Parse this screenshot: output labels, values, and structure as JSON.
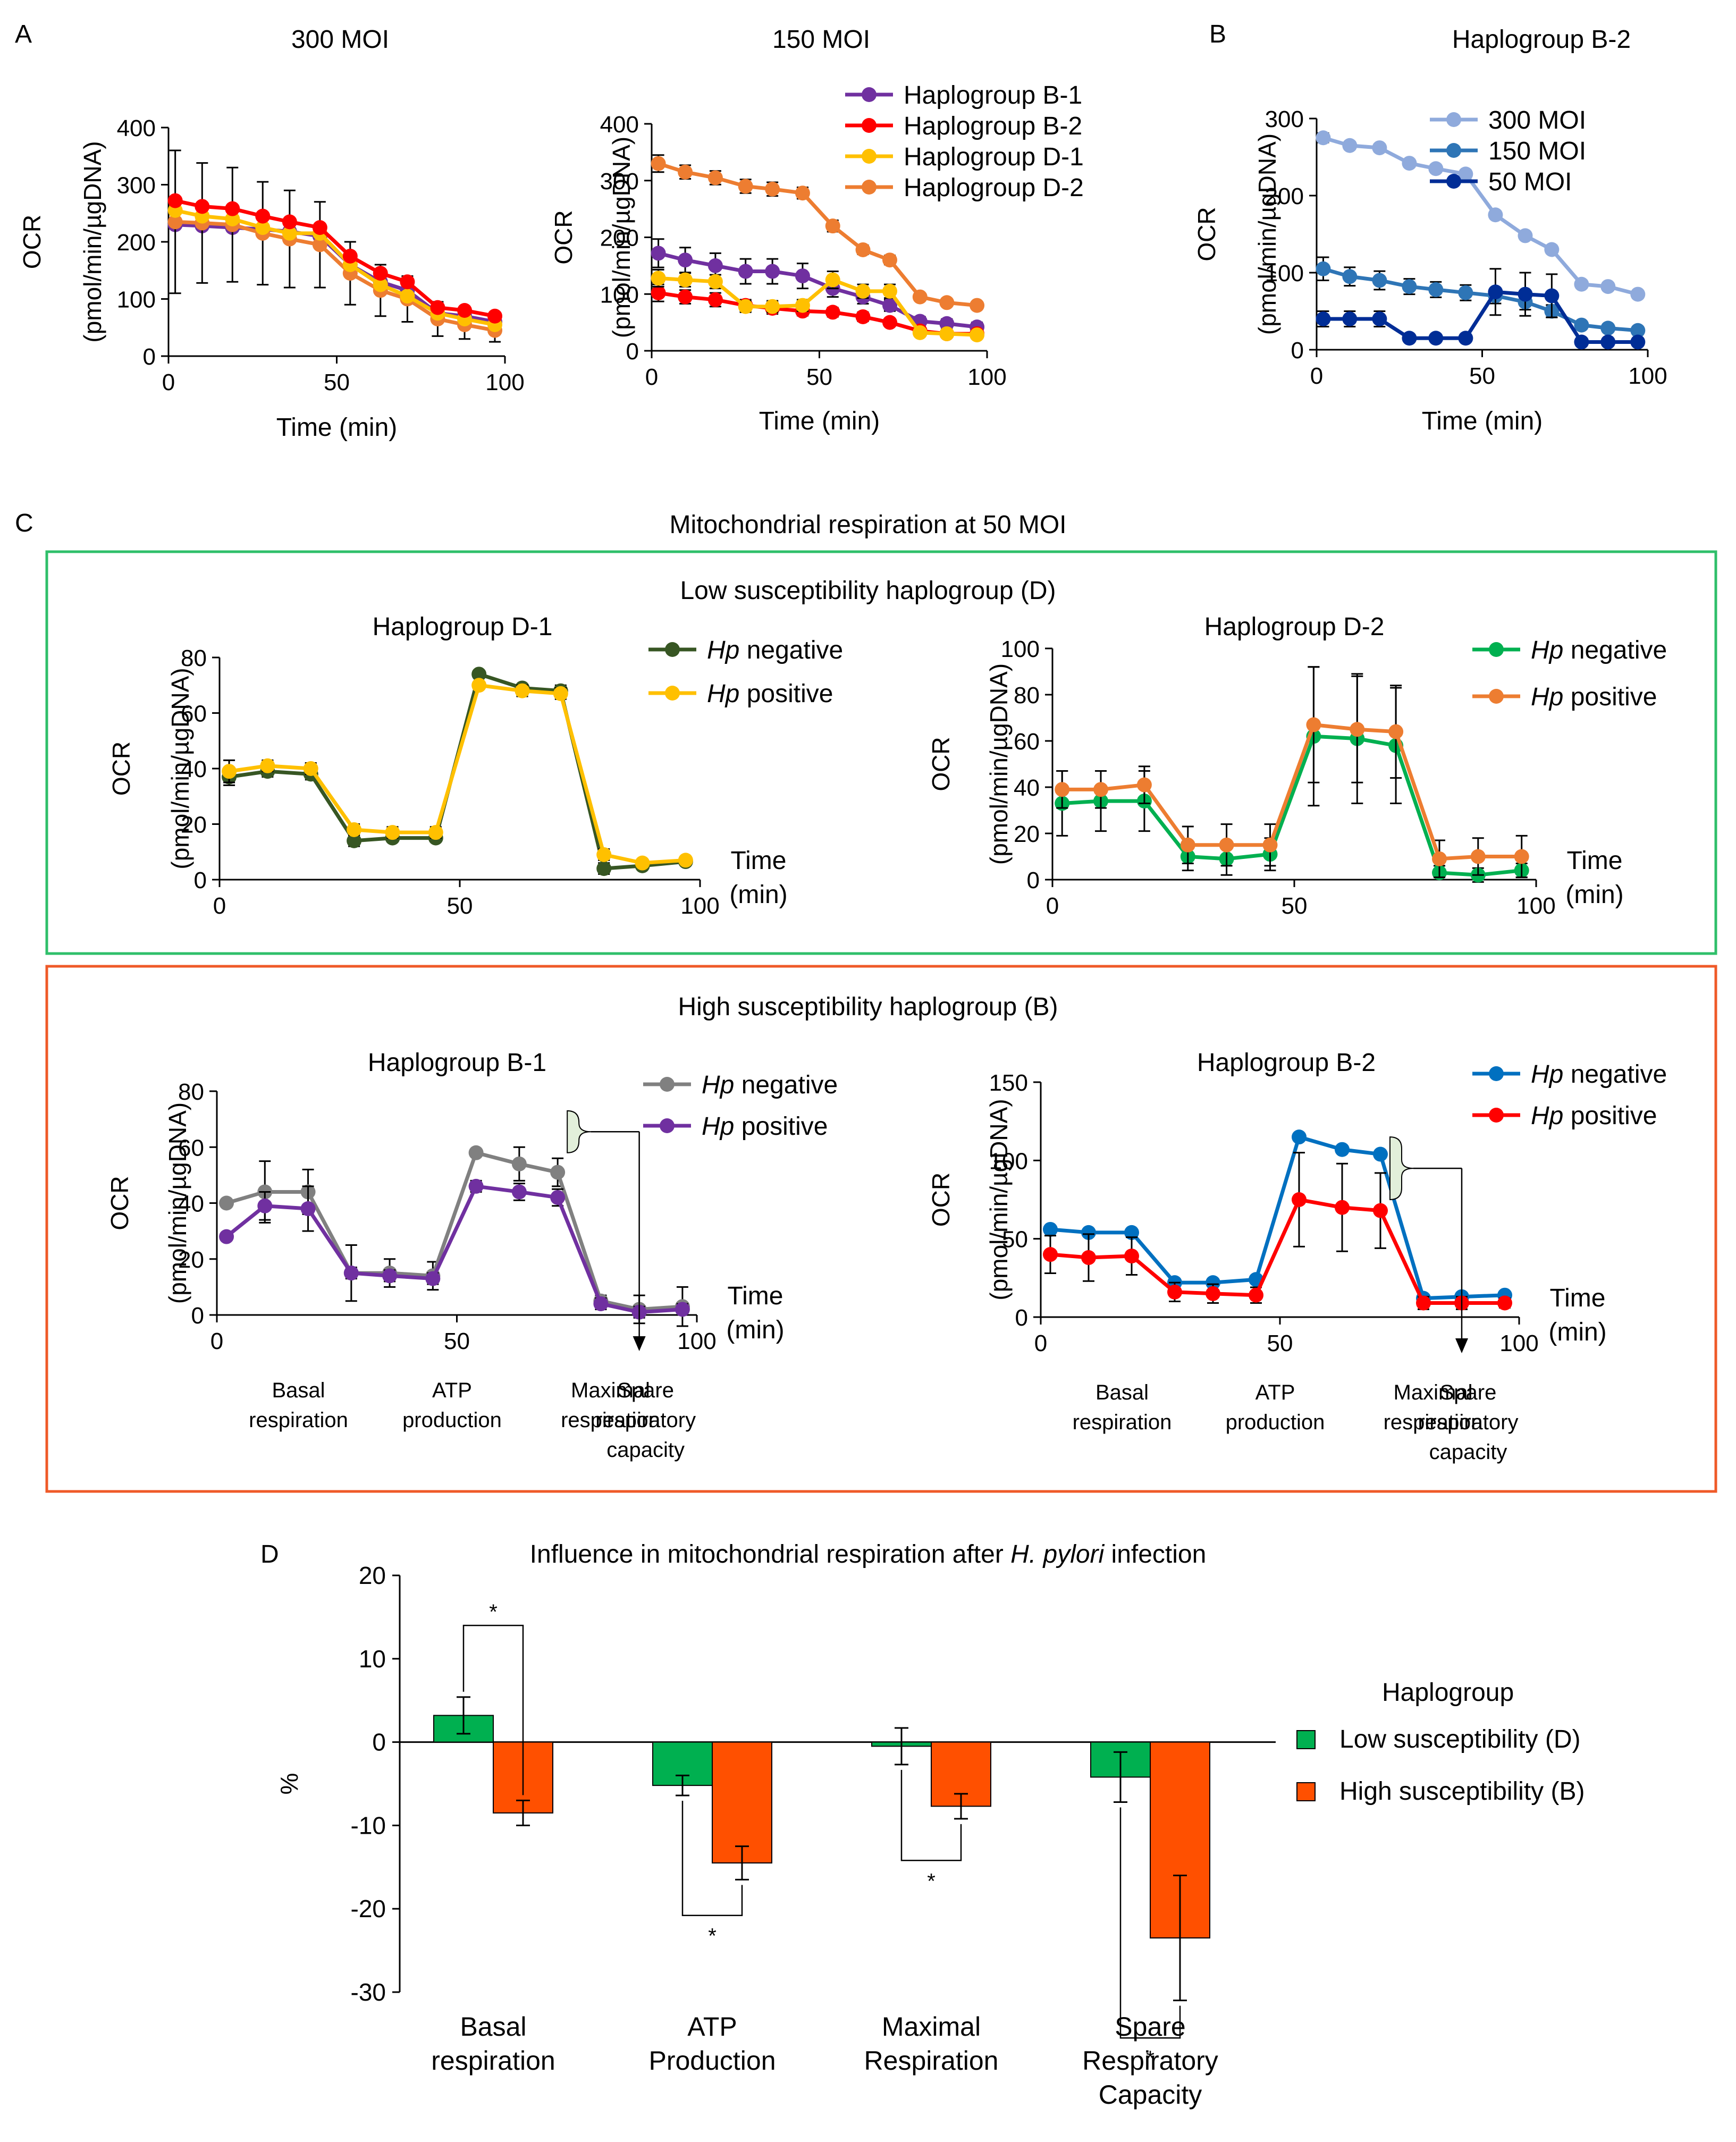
{
  "figure": {
    "panel_labels": {
      "a": "A",
      "b": "B",
      "c": "C",
      "d": "D"
    },
    "panel_c_title": "Mitochondrial respiration at 50 MOI",
    "box_low_title": "Low susceptibility haplogroup (D)",
    "box_high_title": "High susceptibility haplogroup (B)",
    "hp_text": "Hp",
    "phase_labels": [
      [
        "Basal",
        "respiration"
      ],
      [
        "ATP",
        "production"
      ],
      [
        "Maximal",
        "respiration"
      ],
      [
        "Spare",
        "respiratory",
        "capacity"
      ]
    ]
  },
  "chart_data": [
    {
      "id": "A1",
      "type": "line",
      "title": "300 MOI",
      "xlabel": "Time (min)",
      "ylabel": [
        "OCR",
        "(pmol/min/µgDNA)"
      ],
      "xlim": [
        0,
        100
      ],
      "ylim": [
        0,
        400
      ],
      "xticks": [
        0,
        50,
        100
      ],
      "yticks": [
        0,
        100,
        200,
        300,
        400
      ],
      "x": [
        2,
        10,
        19,
        28,
        36,
        45,
        54,
        63,
        71,
        80,
        88,
        97
      ],
      "series": [
        {
          "name": "Haplogroup B-1",
          "color": "#7030a0",
          "values": [
            230,
            228,
            225,
            222,
            218,
            210,
            160,
            130,
            115,
            75,
            70,
            60
          ],
          "err": []
        },
        {
          "name": "Haplogroup D-2",
          "color": "#ed7d31",
          "values": [
            235,
            233,
            230,
            215,
            205,
            195,
            145,
            115,
            100,
            65,
            55,
            45
          ],
          "err": [
            125,
            105,
            100,
            90,
            85,
            75,
            55,
            45,
            40,
            30,
            25,
            20
          ]
        },
        {
          "name": "Haplogroup D-1",
          "color": "#ffc000",
          "values": [
            255,
            245,
            240,
            225,
            215,
            215,
            160,
            125,
            105,
            75,
            65,
            55
          ],
          "err": []
        },
        {
          "name": "Haplogroup B-2",
          "color": "#ff0000",
          "values": [
            272,
            262,
            258,
            245,
            235,
            225,
            175,
            145,
            130,
            85,
            80,
            70
          ],
          "err": []
        }
      ]
    },
    {
      "id": "A2",
      "type": "line",
      "title": "150 MOI",
      "xlabel": "Time (min)",
      "ylabel": [
        "OCR",
        "(pmol/min/µgDNA)"
      ],
      "xlim": [
        0,
        100
      ],
      "ylim": [
        0,
        400
      ],
      "xticks": [
        0,
        50,
        100
      ],
      "yticks": [
        0,
        100,
        200,
        300,
        400
      ],
      "x": [
        2,
        10,
        19,
        28,
        36,
        45,
        54,
        63,
        71,
        80,
        88,
        97
      ],
      "legend": [
        "Haplogroup B-1",
        "Haplogroup B-2",
        "Haplogroup D-1",
        "Haplogroup D-2"
      ],
      "series": [
        {
          "name": "Haplogroup B-1",
          "color": "#7030a0",
          "values": [
            172,
            160,
            150,
            140,
            140,
            132,
            110,
            95,
            80,
            52,
            48,
            42
          ],
          "err": [
            25,
            22,
            22,
            22,
            22,
            22,
            15,
            12,
            10,
            8,
            8,
            8
          ]
        },
        {
          "name": "Haplogroup B-2",
          "color": "#ff0000",
          "values": [
            102,
            95,
            90,
            80,
            75,
            70,
            68,
            60,
            50,
            35,
            30,
            30
          ],
          "err": [
            15,
            12,
            12,
            10,
            10,
            8,
            8,
            8,
            6,
            6,
            5,
            5
          ]
        },
        {
          "name": "Haplogroup D-1",
          "color": "#ffc000",
          "values": [
            128,
            125,
            122,
            78,
            78,
            80,
            125,
            105,
            105,
            32,
            30,
            28
          ],
          "err": [
            15,
            12,
            12,
            10,
            10,
            10,
            15,
            12,
            12,
            6,
            6,
            6
          ]
        },
        {
          "name": "Haplogroup D-2",
          "color": "#ed7d31",
          "values": [
            330,
            315,
            305,
            290,
            285,
            278,
            220,
            178,
            160,
            95,
            85,
            80
          ],
          "err": [
            15,
            12,
            12,
            12,
            12,
            10,
            10,
            8,
            8,
            6,
            6,
            6
          ]
        }
      ]
    },
    {
      "id": "B",
      "type": "line",
      "title": "Haplogroup B-2",
      "xlabel": "Time (min)",
      "ylabel": [
        "OCR",
        "(pmol/min/µgDNA)"
      ],
      "xlim": [
        0,
        100
      ],
      "ylim": [
        0,
        300
      ],
      "xticks": [
        0,
        50,
        100
      ],
      "yticks": [
        0,
        100,
        200,
        300
      ],
      "x": [
        2,
        10,
        19,
        28,
        36,
        45,
        54,
        63,
        71,
        80,
        88,
        97
      ],
      "legend": [
        "300 MOI",
        "150 MOI",
        "50 MOI"
      ],
      "series": [
        {
          "name": "300 MOI",
          "color": "#8faadc",
          "values": [
            275,
            265,
            262,
            242,
            235,
            228,
            175,
            148,
            130,
            85,
            82,
            72
          ],
          "err": [
            6,
            5,
            5,
            5,
            5,
            5,
            5,
            5,
            5,
            5,
            5,
            5
          ]
        },
        {
          "name": "150 MOI",
          "color": "#2e75b6",
          "values": [
            105,
            95,
            90,
            82,
            78,
            74,
            70,
            62,
            50,
            32,
            28,
            25
          ],
          "err": [
            15,
            12,
            12,
            10,
            10,
            10,
            10,
            10,
            8,
            5,
            5,
            5
          ]
        },
        {
          "name": "50 MOI",
          "color": "#002d96",
          "values": [
            40,
            40,
            40,
            15,
            15,
            15,
            75,
            72,
            70,
            10,
            10,
            10
          ],
          "err": [
            10,
            10,
            10,
            3,
            3,
            3,
            30,
            28,
            28,
            3,
            3,
            3
          ]
        }
      ]
    },
    {
      "id": "C1",
      "type": "line",
      "title": "Haplogroup D-1",
      "xlabel": [
        "Time",
        "(min)"
      ],
      "ylabel": [
        "OCR",
        "(pmol/min/µgDNA)"
      ],
      "xlim": [
        0,
        100
      ],
      "ylim": [
        0,
        80
      ],
      "xticks": [
        0,
        50,
        100
      ],
      "yticks": [
        0,
        20,
        40,
        60,
        80
      ],
      "x": [
        2,
        10,
        19,
        28,
        36,
        45,
        54,
        63,
        71,
        80,
        88,
        97
      ],
      "series": [
        {
          "name": "negative",
          "color": "#375623",
          "values": [
            37,
            39,
            38,
            14,
            15,
            15,
            74,
            69,
            68,
            4,
            5,
            6.5
          ],
          "err": [
            3,
            2,
            2,
            2,
            1,
            1,
            1,
            1,
            2,
            2,
            1,
            1
          ]
        },
        {
          "name": "positive",
          "color": "#ffc000",
          "values": [
            39,
            41,
            40,
            18,
            17,
            17,
            70,
            68,
            67,
            9,
            6,
            7
          ],
          "err": [
            4,
            2,
            2,
            2,
            2,
            2,
            1,
            2,
            2,
            2,
            1,
            1
          ]
        }
      ]
    },
    {
      "id": "C2",
      "type": "line",
      "title": "Haplogroup D-2",
      "xlabel": [
        "Time",
        "(min)"
      ],
      "ylabel": [
        "OCR",
        "(pmol/min/µgDNA)"
      ],
      "xlim": [
        0,
        100
      ],
      "ylim": [
        0,
        100
      ],
      "xticks": [
        0,
        50,
        100
      ],
      "yticks": [
        0,
        20,
        40,
        60,
        80,
        100
      ],
      "x": [
        2,
        10,
        19,
        28,
        36,
        45,
        54,
        63,
        71,
        80,
        88,
        97
      ],
      "series": [
        {
          "name": "negative",
          "color": "#00b050",
          "values": [
            33,
            34,
            34,
            10,
            9,
            11,
            62,
            61,
            58,
            3,
            2,
            4
          ],
          "err": [
            14,
            13,
            13,
            6,
            7,
            7,
            30,
            28,
            25,
            3,
            3,
            3
          ]
        },
        {
          "name": "positive",
          "color": "#ed7d31",
          "values": [
            39,
            39,
            41,
            15,
            15,
            15,
            67,
            65,
            64,
            9,
            10,
            10
          ],
          "err": [
            8,
            8,
            8,
            8,
            9,
            9,
            25,
            23,
            20,
            8,
            8,
            9
          ]
        }
      ]
    },
    {
      "id": "C3",
      "type": "line",
      "title": "Haplogroup B-1",
      "xlabel": [
        "Time",
        "(min)"
      ],
      "ylabel": [
        "OCR",
        "(pmol/min/µgDNA)"
      ],
      "xlim": [
        0,
        100
      ],
      "ylim": [
        0,
        80
      ],
      "xticks": [
        0,
        50,
        100
      ],
      "yticks": [
        0,
        20,
        40,
        60,
        80
      ],
      "x": [
        2,
        10,
        19,
        28,
        36,
        45,
        54,
        63,
        71,
        80,
        88,
        97
      ],
      "bracket_range": [
        58,
        73
      ],
      "spare_arrow_x": 88,
      "series": [
        {
          "name": "negative",
          "color": "#808080",
          "values": [
            40,
            44,
            44,
            15,
            15,
            14,
            58,
            54,
            51,
            5,
            2,
            3
          ],
          "err": [
            1,
            11,
            8,
            10,
            5,
            5,
            1,
            6,
            5,
            2,
            5,
            7
          ]
        },
        {
          "name": "positive",
          "color": "#7030a0",
          "values": [
            28,
            39,
            38,
            15,
            14,
            13,
            46,
            44,
            42,
            4,
            1,
            2
          ],
          "err": [
            1,
            5,
            8,
            2,
            2,
            2,
            2,
            3,
            3,
            2,
            2,
            2
          ]
        }
      ]
    },
    {
      "id": "C4",
      "type": "line",
      "title": "Haplogroup B-2",
      "xlabel": [
        "Time",
        "(min)"
      ],
      "ylabel": [
        "OCR",
        "(pmol/min/µgDNA)"
      ],
      "xlim": [
        0,
        100
      ],
      "ylim": [
        0,
        150
      ],
      "xticks": [
        0,
        50,
        100
      ],
      "yticks": [
        0,
        50,
        100,
        150
      ],
      "x": [
        2,
        10,
        19,
        28,
        36,
        45,
        54,
        63,
        71,
        80,
        88,
        97
      ],
      "bracket_range": [
        75,
        115
      ],
      "spare_arrow_x": 88,
      "series": [
        {
          "name": "negative",
          "color": "#0070c0",
          "values": [
            56,
            54,
            54,
            22,
            22,
            24,
            115,
            107,
            104,
            12,
            13,
            14
          ],
          "err": [
            1,
            1,
            1,
            1,
            1,
            1,
            1,
            1,
            1,
            1,
            1,
            1
          ]
        },
        {
          "name": "positive",
          "color": "#ff0000",
          "values": [
            40,
            38,
            39,
            16,
            15,
            14,
            75,
            70,
            68,
            9,
            9,
            9
          ],
          "err": [
            12,
            15,
            12,
            6,
            6,
            5,
            30,
            28,
            24,
            4,
            4,
            3
          ]
        }
      ]
    },
    {
      "id": "D",
      "type": "bar",
      "title_pre": "Influence in mitochondrial respiration after ",
      "title_italic": "H. pylori",
      "title_post": " infection",
      "ylabel": "%",
      "ylim": [
        -30,
        20
      ],
      "yticks": [
        20,
        10,
        0,
        -10,
        -20,
        -30
      ],
      "categories": [
        [
          "Basal",
          "respiration"
        ],
        [
          "ATP",
          "Production"
        ],
        [
          "Maximal",
          "Respiration"
        ],
        [
          "Spare",
          "Respiratory",
          "Capacity"
        ]
      ],
      "legend_title": "Haplogroup",
      "series": [
        {
          "name": "Low susceptibility (D)",
          "color": "#00b050",
          "values": [
            3.2,
            -5.2,
            -0.5,
            -4.2
          ],
          "err": [
            2.2,
            1.2,
            2.2,
            3.0
          ]
        },
        {
          "name": "High susceptibility (B)",
          "color": "#ff5000",
          "values": [
            -8.5,
            -14.5,
            -7.7,
            -23.5
          ],
          "err": [
            1.5,
            2.0,
            1.5,
            7.5
          ]
        }
      ],
      "significance": "*"
    }
  ]
}
